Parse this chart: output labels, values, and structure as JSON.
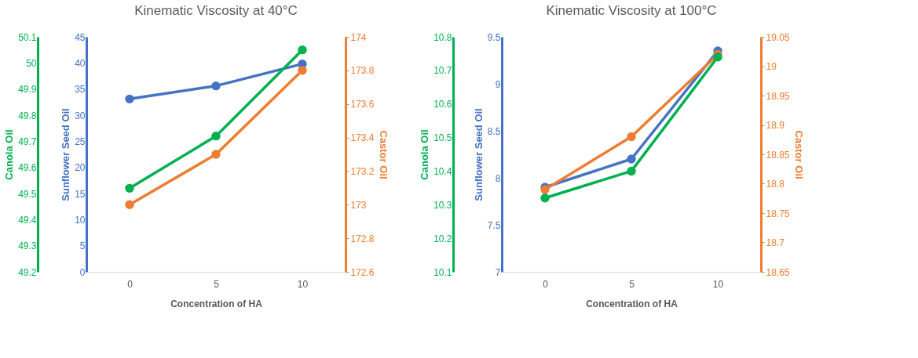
{
  "chart_data": [
    {
      "type": "line",
      "title": "Kinematic Viscosity at 40°C",
      "xlabel": "Concentration of HA",
      "ylabel": "Sunflower Seed Oil",
      "y2label": "Castor Oil",
      "y3label": "Canola Oil",
      "categories": [
        "0",
        "5",
        "10"
      ],
      "ylim": [
        0,
        45
      ],
      "yticks": [
        0,
        5,
        10,
        15,
        20,
        25,
        30,
        35,
        40,
        45
      ],
      "y2lim": [
        172.6,
        174
      ],
      "y2ticks": [
        172.6,
        172.8,
        173,
        173.2,
        173.4,
        173.6,
        173.8,
        174
      ],
      "y3lim": [
        49.2,
        50.1
      ],
      "y3ticks": [
        49.2,
        49.3,
        49.4,
        49.5,
        49.6,
        49.7,
        49.8,
        49.9,
        50,
        50.1
      ],
      "series": [
        {
          "color": "#4472c4",
          "axis": "y",
          "values": [
            33.1,
            35.6,
            39.8
          ]
        },
        {
          "color": "#ed7d31",
          "axis": "y2",
          "values": [
            173.0,
            173.3,
            173.8
          ]
        },
        {
          "color": "#00b050",
          "axis": "y3",
          "values": [
            49.52,
            49.72,
            50.05
          ]
        }
      ],
      "marker": "circle",
      "line_style": "solid",
      "grid": false
    },
    {
      "type": "line",
      "title": "Kinematic Viscosity at 100°C",
      "xlabel": "Concentration of HA",
      "ylabel": "Sunflower Seed Oil",
      "y2label": "Castor Oil",
      "y3label": "Canola Oil",
      "categories": [
        "0",
        "5",
        "10"
      ],
      "ylim": [
        7,
        9.5
      ],
      "yticks": [
        7,
        7.5,
        8,
        8.5,
        9,
        9.5
      ],
      "y2lim": [
        18.65,
        19.05
      ],
      "y2ticks": [
        18.65,
        18.7,
        18.75,
        18.8,
        18.85,
        18.9,
        18.95,
        19,
        19.05
      ],
      "y3lim": [
        10.1,
        10.8
      ],
      "y3ticks": [
        10.1,
        10.2,
        10.3,
        10.4,
        10.5,
        10.6,
        10.7,
        10.8
      ],
      "series": [
        {
          "color": "#4472c4",
          "axis": "y",
          "values": [
            7.9,
            8.2,
            9.35
          ]
        },
        {
          "color": "#ed7d31",
          "axis": "y2",
          "values": [
            18.79,
            18.88,
            19.02
          ]
        },
        {
          "color": "#00b050",
          "axis": "y3",
          "values": [
            10.32,
            10.4,
            10.74
          ]
        }
      ],
      "marker": "circle",
      "line_style": "solid",
      "grid": false
    }
  ]
}
